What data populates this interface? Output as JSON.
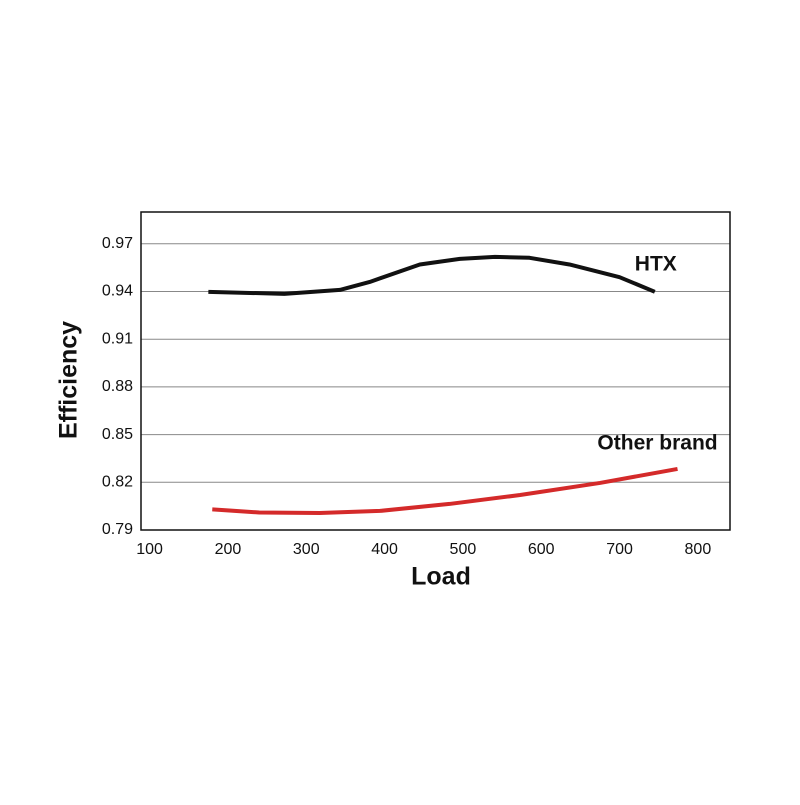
{
  "chart_data": {
    "type": "line",
    "x_label": "Load",
    "y_label": "Efficiency",
    "xlim": [
      89,
      841
    ],
    "xticks": [
      100,
      200,
      300,
      400,
      500,
      600,
      700,
      800
    ],
    "ylim": [
      0.79,
      0.99
    ],
    "yticks": [
      0.79,
      0.82,
      0.85,
      0.88,
      0.91,
      0.94,
      0.97
    ],
    "grid": true,
    "series": [
      {
        "name": "HTX",
        "color": "#111111",
        "x": [
          175,
          272,
          343,
          381,
          445,
          496,
          541,
          585,
          636,
          700,
          745
        ],
        "values": [
          0.9398,
          0.9385,
          0.941,
          0.946,
          0.957,
          0.9605,
          0.9618,
          0.9612,
          0.957,
          0.949,
          0.9398
        ]
      },
      {
        "name": "Other brand",
        "color": "#d42a2a",
        "x": [
          180,
          240,
          317,
          394,
          483,
          573,
          675,
          774
        ],
        "values": [
          0.803,
          0.801,
          0.8007,
          0.802,
          0.8064,
          0.812,
          0.8196,
          0.8284
        ]
      }
    ]
  }
}
